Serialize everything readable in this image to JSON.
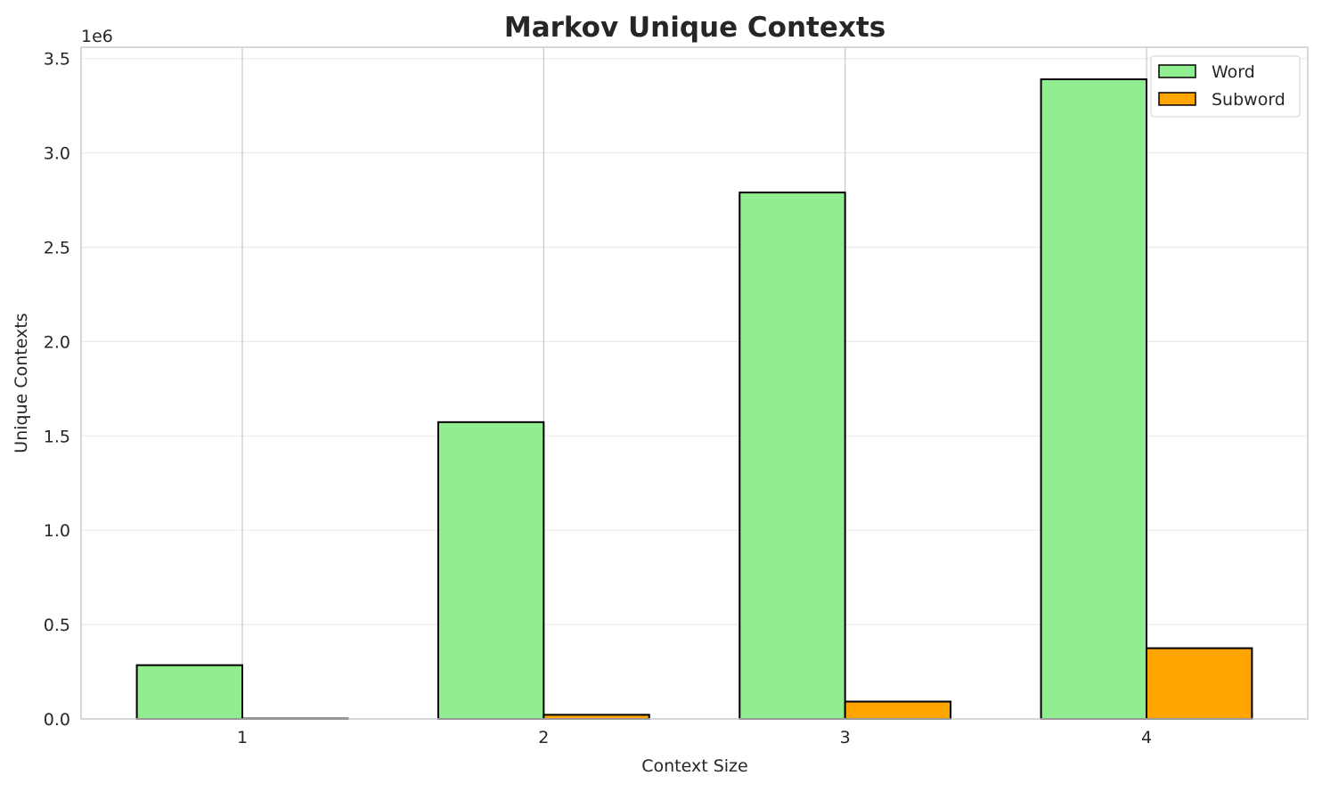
{
  "chart_data": {
    "type": "bar",
    "title": "Markov Unique Contexts",
    "xlabel": "Context Size",
    "ylabel": "Unique Contexts",
    "y_offset_label": "1e6",
    "categories": [
      "1",
      "2",
      "3",
      "4"
    ],
    "series": [
      {
        "name": "Word",
        "color": "#90ee90",
        "values": [
          285000,
          1573000,
          2790000,
          3390000
        ]
      },
      {
        "name": "Subword",
        "color": "#ffa500",
        "values": [
          2000,
          22000,
          92000,
          375000
        ]
      }
    ],
    "ylim": [
      0,
      3560000
    ],
    "yticks": [
      0,
      500000,
      1000000,
      1500000,
      2000000,
      2500000,
      3000000,
      3500000
    ],
    "ytick_labels": [
      "0.0",
      "0.5",
      "1.0",
      "1.5",
      "2.0",
      "2.5",
      "3.0",
      "3.5"
    ],
    "grid": true,
    "legend_position": "top-right"
  }
}
